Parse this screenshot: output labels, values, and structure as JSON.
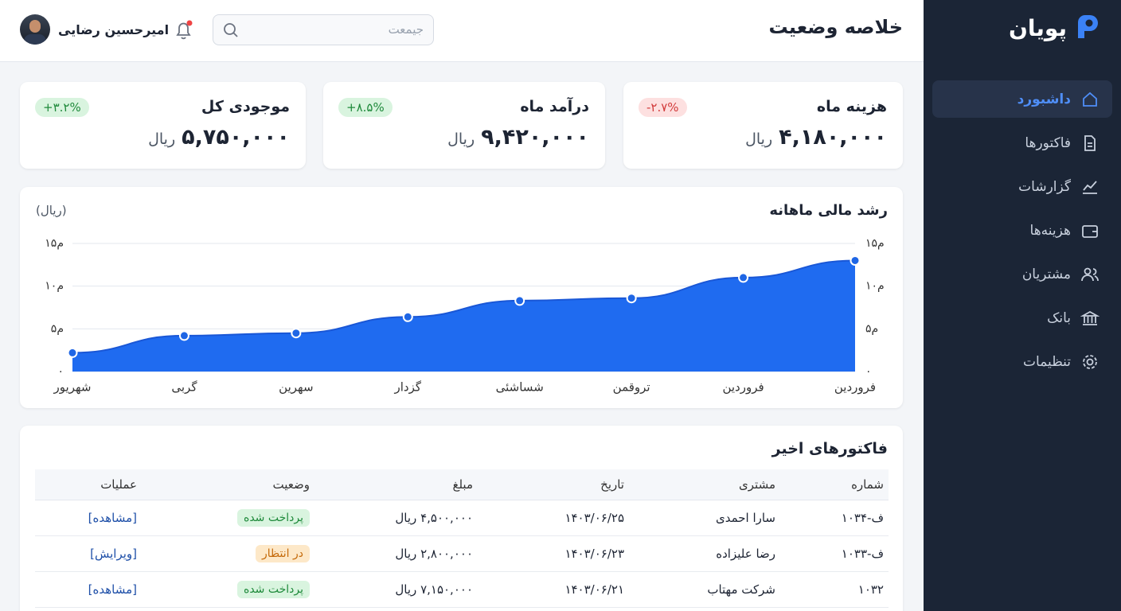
{
  "sidebar": {
    "brand": "پویان",
    "nav": [
      "داشبورد",
      "فاکتورها",
      "گزارشات",
      "هزینه‌ها",
      "مشتریان",
      "بانک",
      "تنظیمات"
    ]
  },
  "header": {
    "title": "خلاصه وضعیت",
    "search_placeholder": "جیمعت",
    "user": "امیرحسین رضایی"
  },
  "cards": [
    {
      "title": "هزینه ماه",
      "value": "۴,۱۸۰,۰۰۰",
      "unit": "ریال",
      "change": "-۲.۷%"
    },
    {
      "title": "درآمد ماه",
      "value": "۹,۴۲۰,۰۰۰",
      "unit": "ریال",
      "change": "+۸.۵%"
    },
    {
      "title": "موجودی کل",
      "value": "۵,۷۵۰,۰۰۰",
      "unit": "ریال",
      "change": "+۳.۲%"
    }
  ],
  "chart_data": {
    "type": "area",
    "title": "رشد مالی ماهانه",
    "unit_label": "(ریال)",
    "categories": [
      "شهریور",
      "گربی",
      "سهرین",
      "گزدار",
      "شساشئی",
      "تروقمن",
      "فروردین",
      "فروردین"
    ],
    "values": [
      2.2,
      4.2,
      4.5,
      6.4,
      8.3,
      8.6,
      11.0,
      13.0
    ],
    "color": "#1f6bf0",
    "ylim": [
      0,
      15
    ],
    "yticks": [
      {
        "value": 0,
        "label": "۰"
      },
      {
        "value": 5,
        "label": "۵م"
      },
      {
        "value": 10,
        "label": "۱۰م"
      },
      {
        "value": 15,
        "label": "۱۵م"
      }
    ],
    "grid": true
  },
  "table": {
    "title": "فاکتورهای اخیر",
    "columns": [
      "شماره",
      "مشتری",
      "تاریخ",
      "مبلغ",
      "وضعیت",
      "عملیات"
    ],
    "rows": [
      [
        "ف-۱۰۳۴",
        "سارا احمدی",
        "۱۴۰۳/۰۶/۲۵",
        "۴,۵۰۰,۰۰۰ ریال",
        "پرداخت شده",
        "[مشاهده]"
      ],
      [
        "ف-۱۰۳۳",
        "رضا علیزاده",
        "۱۴۰۳/۰۶/۲۳",
        "۲,۸۰۰,۰۰۰ ریال",
        "در انتظار",
        "[ویرایش]"
      ],
      [
        "۱۰۳۲",
        "شرکت مهتاب",
        "۱۴۰۳/۰۶/۲۱",
        "۷,۱۵۰,۰۰۰ ریال",
        "پرداخت شده",
        "[مشاهده]"
      ]
    ]
  }
}
